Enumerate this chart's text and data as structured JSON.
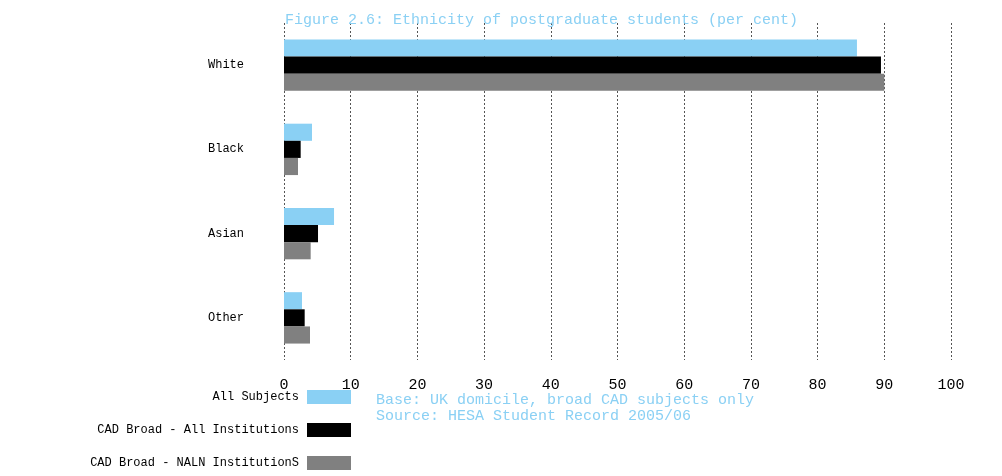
{
  "chart_data": {
    "type": "bar",
    "orientation": "horizontal",
    "title": "Figure 2.6: Ethnicity of postgraduate students (per cent)",
    "categories": [
      "White",
      "Black",
      "Asian",
      "Other"
    ],
    "series": [
      {
        "name": "All Subjects",
        "color": "#8ad0f4",
        "values": [
          85.9,
          4.2,
          7.5,
          2.7
        ]
      },
      {
        "name": "CAD Broad - All Institutions",
        "color": "#000000",
        "values": [
          89.5,
          2.5,
          5.1,
          3.1
        ]
      },
      {
        "name": "CAD Broad - NALN InstitutionS",
        "color": "#808080",
        "values": [
          90.0,
          2.1,
          4.0,
          3.9
        ]
      }
    ],
    "xlim": [
      0,
      100
    ],
    "xticks": [
      0,
      10,
      20,
      30,
      40,
      50,
      60,
      70,
      80,
      90,
      100
    ],
    "grid": "x",
    "legend": "bottom left",
    "annotations": [
      "Base: UK domicile, broad CAD subjects only",
      "Source: HESA Student Record 2005/06"
    ]
  }
}
